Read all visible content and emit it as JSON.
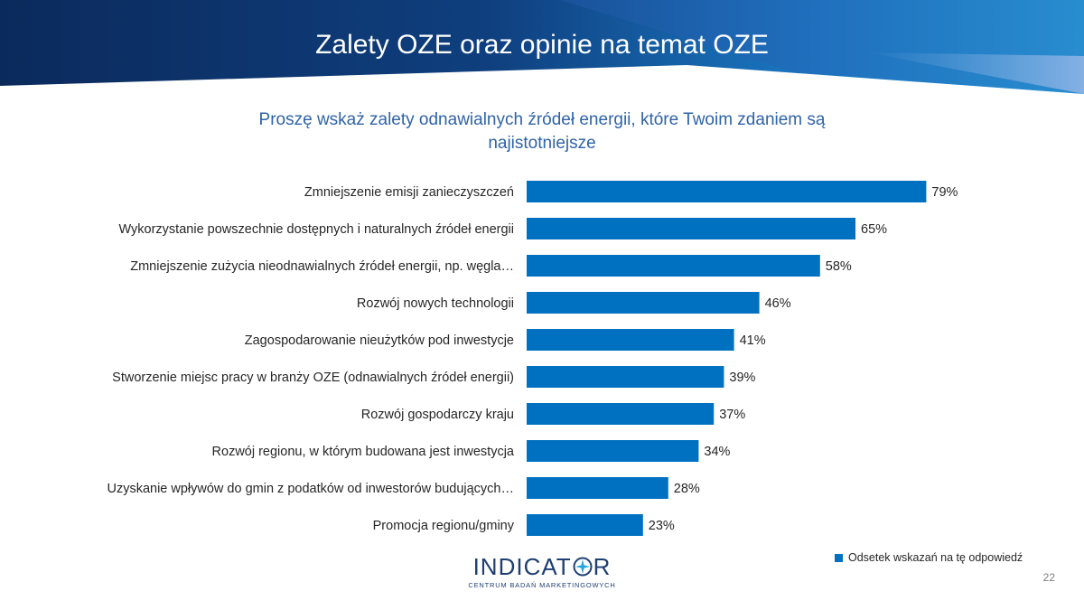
{
  "slide": {
    "title": "Zalety OZE oraz opinie na temat OZE",
    "subtitle": "Proszę wskaż zalety odnawialnych źródeł energii, które Twoim zdaniem są najistotniejsze",
    "page_number": "22"
  },
  "logo": {
    "word_start": "INDICAT",
    "word_end": "R",
    "tagline": "CENTRUM BADAŃ MARKETINGOWYCH"
  },
  "colors": {
    "bar": "#0070c0",
    "header_dark": "#0b2a5c",
    "header_light": "#1f9ad6",
    "subtitle": "#2f63a8"
  },
  "chart_data": {
    "type": "bar",
    "orientation": "horizontal",
    "categories": [
      "Zmniejszenie emisji zanieczyszczeń",
      "Wykorzystanie powszechnie dostępnych i naturalnych źródeł energii",
      "Zmniejszenie zużycia nieodnawialnych źródeł energii, np. węgla…",
      "Rozwój nowych technologii",
      "Zagospodarowanie nieużytków pod inwestycje",
      "Stworzenie miejsc pracy w branży OZE (odnawialnych źródeł energii)",
      "Rozwój gospodarczy kraju",
      "Rozwój regionu, w którym budowana jest inwestycja",
      "Uzyskanie wpływów do gmin z podatków od inwestorów budujących…",
      "Promocja regionu/gminy"
    ],
    "series": [
      {
        "name": "Odsetek wskazań na tę odpowiedź",
        "values": [
          79,
          65,
          58,
          46,
          41,
          39,
          37,
          34,
          28,
          23
        ]
      }
    ],
    "value_labels": [
      "79%",
      "65%",
      "58%",
      "46%",
      "41%",
      "39%",
      "37%",
      "34%",
      "28%",
      "23%"
    ],
    "unit": "%",
    "xlim": [
      0,
      100
    ],
    "grid": false,
    "legend_position": "bottom-right"
  }
}
